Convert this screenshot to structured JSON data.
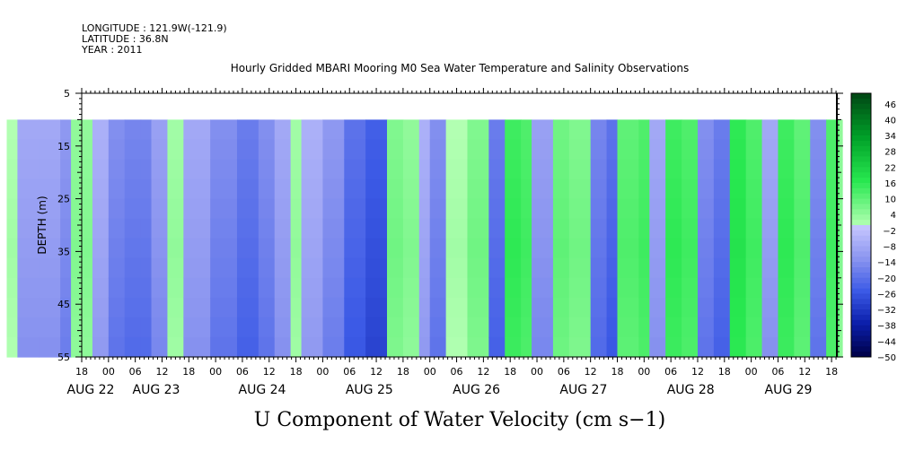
{
  "header": {
    "longitude": "LONGITUDE : 121.9W(-121.9)",
    "latitude": "LATITUDE : 36.8N",
    "year": "YEAR : 2011"
  },
  "chart_data": {
    "type": "heatmap",
    "title": "Hourly Gridded MBARI Mooring M0 Sea Water Temperature and Salinity Observations",
    "xlabel": "U Component of Water Velocity (cm s−1)",
    "ylabel": "DEPTH (m)",
    "ylim": [
      5,
      55
    ],
    "y_inverted": true,
    "y_ticks": [
      5,
      15,
      25,
      35,
      45,
      55
    ],
    "data_depth_range": [
      10,
      55
    ],
    "x_range_hours_labels": [
      "AUG 22 18",
      "AUG 29 20"
    ],
    "x_hour_ticks": [
      "18",
      "00",
      "06",
      "12",
      "18",
      "00",
      "06",
      "12",
      "18",
      "00",
      "06",
      "12",
      "18",
      "00",
      "06",
      "12",
      "18",
      "00",
      "06",
      "12",
      "18",
      "00",
      "06",
      "12",
      "18",
      "00",
      "06",
      "12",
      "18",
      "00",
      "06",
      "12",
      "18"
    ],
    "x_date_labels": [
      "AUG 22",
      "AUG 23",
      "AUG 24",
      "AUG 25",
      "AUG 26",
      "AUG 27",
      "AUG 28",
      "AUG 29"
    ],
    "colorbar": {
      "min": -50,
      "max": 50,
      "step": 2,
      "labels": [
        "46",
        "40",
        "34",
        "28",
        "22",
        "16",
        "10",
        "4",
        "−2",
        "−8",
        "−14",
        "−20",
        "−26",
        "−32",
        "−38",
        "−44",
        "−50"
      ]
    },
    "bands": [
      {
        "day": 22.05,
        "v": 0
      },
      {
        "day": 22.15,
        "v": -8
      },
      {
        "day": 22.35,
        "v": -8
      },
      {
        "day": 22.55,
        "v": -12
      },
      {
        "day": 22.65,
        "v": 4
      },
      {
        "day": 22.85,
        "v": -6
      },
      {
        "day": 23.0,
        "v": -14
      },
      {
        "day": 23.15,
        "v": -16
      },
      {
        "day": 23.3,
        "v": -16
      },
      {
        "day": 23.4,
        "v": -10
      },
      {
        "day": 23.55,
        "v": 2
      },
      {
        "day": 23.7,
        "v": -8
      },
      {
        "day": 23.95,
        "v": -14
      },
      {
        "day": 24.2,
        "v": -18
      },
      {
        "day": 24.4,
        "v": -14
      },
      {
        "day": 24.55,
        "v": -8
      },
      {
        "day": 24.7,
        "v": 2
      },
      {
        "day": 24.8,
        "v": -6
      },
      {
        "day": 25.0,
        "v": -12
      },
      {
        "day": 25.2,
        "v": -20
      },
      {
        "day": 25.4,
        "v": -24
      },
      {
        "day": 25.6,
        "v": 6
      },
      {
        "day": 25.75,
        "v": 4
      },
      {
        "day": 25.9,
        "v": -6
      },
      {
        "day": 26.0,
        "v": -14
      },
      {
        "day": 26.15,
        "v": 0
      },
      {
        "day": 26.35,
        "v": 6
      },
      {
        "day": 26.55,
        "v": -18
      },
      {
        "day": 26.7,
        "v": 14
      },
      {
        "day": 26.85,
        "v": 12
      },
      {
        "day": 26.95,
        "v": -10
      },
      {
        "day": 27.15,
        "v": 8
      },
      {
        "day": 27.3,
        "v": 6
      },
      {
        "day": 27.5,
        "v": -16
      },
      {
        "day": 27.65,
        "v": -20
      },
      {
        "day": 27.75,
        "v": 10
      },
      {
        "day": 27.95,
        "v": 12
      },
      {
        "day": 28.05,
        "v": -8
      },
      {
        "day": 28.2,
        "v": 14
      },
      {
        "day": 28.35,
        "v": 12
      },
      {
        "day": 28.5,
        "v": -14
      },
      {
        "day": 28.65,
        "v": -18
      },
      {
        "day": 28.8,
        "v": 16
      },
      {
        "day": 28.95,
        "v": 12
      },
      {
        "day": 29.1,
        "v": -8
      },
      {
        "day": 29.25,
        "v": 14
      },
      {
        "day": 29.4,
        "v": 10
      },
      {
        "day": 29.55,
        "v": -14
      },
      {
        "day": 29.7,
        "v": 12
      },
      {
        "day": 29.82,
        "v": 4
      }
    ]
  }
}
